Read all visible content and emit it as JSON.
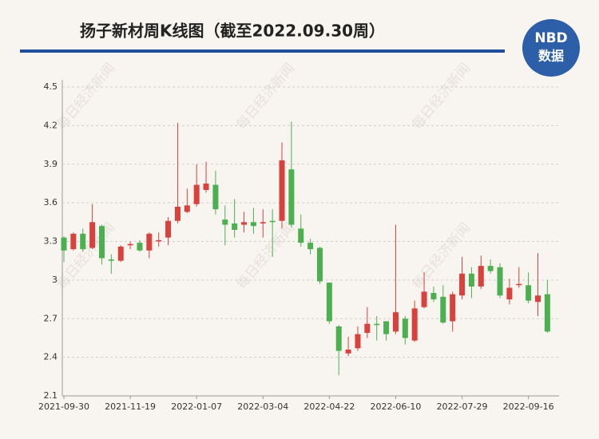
{
  "chart_data": {
    "type": "candlestick",
    "title": "扬子新材周K线图（截至2022.09.30周）",
    "logo": {
      "top": "NBD",
      "bottom": "数据"
    },
    "watermark": "每日经济新闻",
    "categories": [
      "2021-09-30",
      null,
      null,
      null,
      null,
      null,
      null,
      "2021-11-19",
      null,
      null,
      null,
      null,
      null,
      null,
      "2022-01-07",
      null,
      null,
      null,
      null,
      null,
      null,
      "2022-03-04",
      null,
      null,
      null,
      null,
      null,
      null,
      "2022-04-22",
      null,
      null,
      null,
      null,
      null,
      null,
      "2022-06-10",
      null,
      null,
      null,
      null,
      null,
      null,
      "2022-07-29",
      null,
      null,
      null,
      null,
      null,
      null,
      "2022-09-16",
      null,
      null
    ],
    "open": [
      3.33,
      3.24,
      3.36,
      3.25,
      3.42,
      3.16,
      3.15,
      3.27,
      3.29,
      3.23,
      3.3,
      3.33,
      3.46,
      3.53,
      3.59,
      3.7,
      3.74,
      3.47,
      3.44,
      3.43,
      3.45,
      3.44,
      3.46,
      3.46,
      3.86,
      3.4,
      3.29,
      3.25,
      2.98,
      2.64,
      2.43,
      2.47,
      2.59,
      2.66,
      2.68,
      2.6,
      2.7,
      2.53,
      2.79,
      2.9,
      2.87,
      2.68,
      2.88,
      3.05,
      2.95,
      3.11,
      3.1,
      2.85,
      2.96,
      2.96,
      2.83,
      2.89
    ],
    "high": [
      3.34,
      3.37,
      3.4,
      3.59,
      3.43,
      3.2,
      3.27,
      3.3,
      3.31,
      3.37,
      3.37,
      3.49,
      4.22,
      3.71,
      3.9,
      3.92,
      3.85,
      3.58,
      3.63,
      3.53,
      3.56,
      3.55,
      3.55,
      4.07,
      4.23,
      3.51,
      3.32,
      3.26,
      2.98,
      2.65,
      2.56,
      2.64,
      2.79,
      2.72,
      2.68,
      3.43,
      2.72,
      2.84,
      3.06,
      2.95,
      2.96,
      2.91,
      3.18,
      3.1,
      3.19,
      3.16,
      3.13,
      3.01,
      3.1,
      3.06,
      3.21,
      3.0
    ],
    "low": [
      3.14,
      3.23,
      3.22,
      3.24,
      3.12,
      3.05,
      3.14,
      3.24,
      3.22,
      3.17,
      3.26,
      3.27,
      3.44,
      3.52,
      3.57,
      3.68,
      3.51,
      3.27,
      3.33,
      3.37,
      3.36,
      3.33,
      3.18,
      3.4,
      3.41,
      3.26,
      3.2,
      2.97,
      2.66,
      2.26,
      2.41,
      2.45,
      2.55,
      2.53,
      2.53,
      2.58,
      2.5,
      2.52,
      2.78,
      2.83,
      2.66,
      2.6,
      2.85,
      2.86,
      2.93,
      3.05,
      2.86,
      2.81,
      2.94,
      2.82,
      2.72,
      2.59
    ],
    "close": [
      3.23,
      3.36,
      3.24,
      3.45,
      3.17,
      3.15,
      3.26,
      3.28,
      3.23,
      3.36,
      3.31,
      3.46,
      3.57,
      3.58,
      3.74,
      3.75,
      3.55,
      3.43,
      3.39,
      3.45,
      3.42,
      3.45,
      3.45,
      3.93,
      3.43,
      3.29,
      3.24,
      2.99,
      2.68,
      2.45,
      2.46,
      2.58,
      2.66,
      2.65,
      2.58,
      2.75,
      2.55,
      2.78,
      2.91,
      2.85,
      2.67,
      2.89,
      3.05,
      2.95,
      3.11,
      3.07,
      2.88,
      2.94,
      2.97,
      2.84,
      2.88,
      2.6
    ],
    "up_color": "#d9413c",
    "down_color": "#4caf50",
    "ylim": [
      2.1,
      4.5
    ],
    "yticks": [
      2.1,
      2.4,
      2.7,
      3,
      3.3,
      3.6,
      3.9,
      4.2,
      4.5
    ],
    "grid": true
  }
}
